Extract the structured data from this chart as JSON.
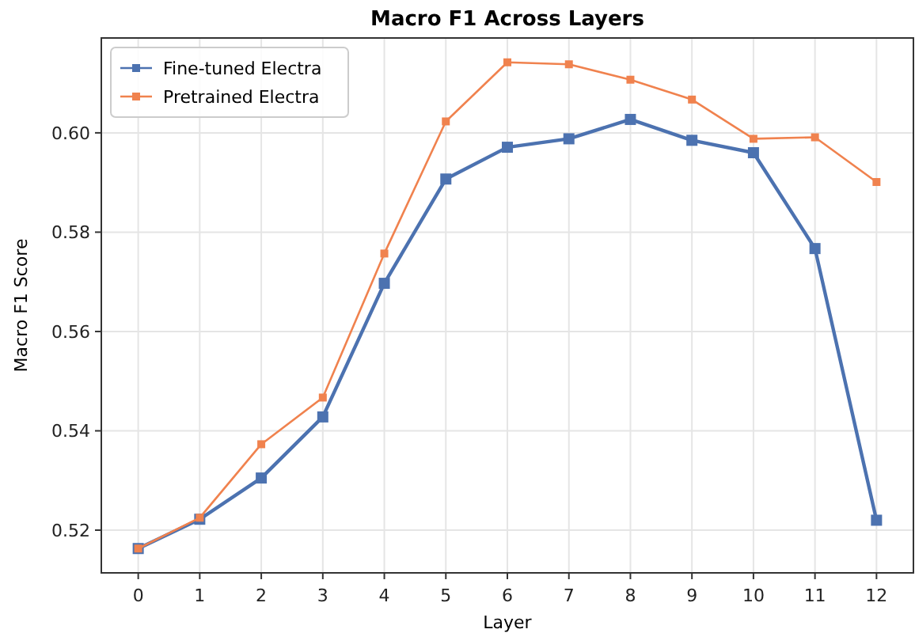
{
  "chart_data": {
    "type": "line",
    "title": "Macro F1 Across Layers",
    "xlabel": "Layer",
    "ylabel": "Macro F1 Score",
    "x": [
      0,
      1,
      2,
      3,
      4,
      5,
      6,
      7,
      8,
      9,
      10,
      11,
      12
    ],
    "series": [
      {
        "name": "Fine-tuned Electra",
        "color": "#4c72b0",
        "values": [
          0.5163,
          0.5222,
          0.5305,
          0.5428,
          0.5697,
          0.5907,
          0.5971,
          0.5988,
          0.6027,
          0.5985,
          0.596,
          0.5767,
          0.522
        ]
      },
      {
        "name": "Pretrained Electra",
        "color": "#f0824e",
        "values": [
          0.5163,
          0.5225,
          0.5373,
          0.5467,
          0.5757,
          0.6023,
          0.6142,
          0.6138,
          0.6107,
          0.6067,
          0.5988,
          0.5991,
          0.5901
        ]
      }
    ],
    "xlim": [
      -0.6,
      12.6
    ],
    "xticks": [
      0,
      1,
      2,
      3,
      4,
      5,
      6,
      7,
      8,
      9,
      10,
      11,
      12
    ],
    "ylim": [
      0.5114,
      0.6191
    ],
    "yticks": [
      {
        "value": 0.52,
        "label": "0.52"
      },
      {
        "value": 0.54,
        "label": "0.54"
      },
      {
        "value": 0.56,
        "label": "0.56"
      },
      {
        "value": 0.58,
        "label": "0.58"
      },
      {
        "value": 0.6,
        "label": "0.60"
      }
    ],
    "grid": true,
    "legend": "top left",
    "marker": "square",
    "line_style": "solid"
  }
}
